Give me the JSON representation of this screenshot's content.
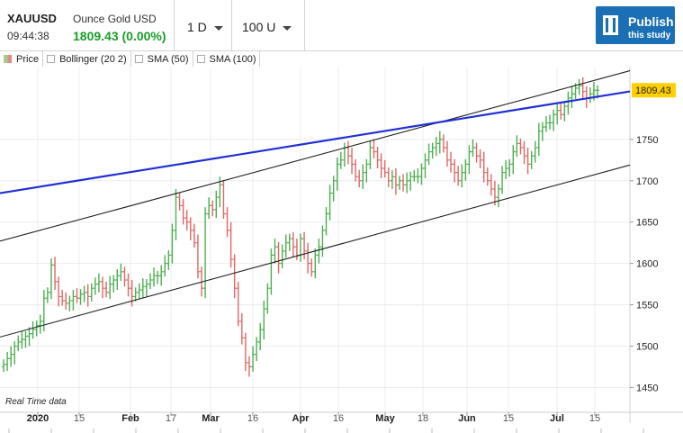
{
  "header": {
    "symbol": "XAUUSD",
    "description": "Ounce Gold USD",
    "time": "09:44:38",
    "price": "1809.43 (0.00%)",
    "period": "1 D",
    "units": "100 U",
    "publish_title": "Publish",
    "publish_sub": "this study"
  },
  "legend": [
    "Price",
    "Bollinger (20 2)",
    "SMA (50)",
    "SMA (100)"
  ],
  "footer_note": "Real Time data",
  "colors": {
    "up": "#4caf50",
    "down": "#e06666",
    "trend_blue": "#1f2fd6",
    "trend_black": "#222222",
    "price_tag": "#ffd000",
    "publish_bg": "#1a6fb5"
  },
  "chart_data": {
    "type": "candlestick",
    "ylim": [
      1420,
      1838
    ],
    "y_ticks": [
      1450,
      1500,
      1550,
      1600,
      1650,
      1700,
      1750
    ],
    "x_tick_labels": [
      "2020",
      "15",
      "Feb",
      "17",
      "Mar",
      "16",
      "Apr",
      "16",
      "May",
      "18",
      "Jun",
      "15",
      "Jul",
      "15"
    ],
    "last_price_label": "1809.43",
    "last_price": 1809.43,
    "close_series": [
      1478,
      1485,
      1490,
      1500,
      1505,
      1508,
      1512,
      1515,
      1520,
      1525,
      1530,
      1558,
      1565,
      1598,
      1578,
      1560,
      1555,
      1552,
      1555,
      1560,
      1558,
      1563,
      1565,
      1560,
      1570,
      1575,
      1578,
      1570,
      1565,
      1575,
      1580,
      1585,
      1590,
      1580,
      1570,
      1560,
      1565,
      1568,
      1572,
      1575,
      1580,
      1585,
      1585,
      1590,
      1600,
      1610,
      1640,
      1680,
      1670,
      1655,
      1650,
      1640,
      1625,
      1590,
      1570,
      1660,
      1670,
      1665,
      1680,
      1695,
      1660,
      1640,
      1605,
      1570,
      1530,
      1510,
      1480,
      1475,
      1490,
      1505,
      1520,
      1545,
      1570,
      1610,
      1620,
      1600,
      1615,
      1625,
      1630,
      1620,
      1610,
      1630,
      1615,
      1600,
      1590,
      1610,
      1620,
      1640,
      1660,
      1685,
      1700,
      1720,
      1725,
      1740,
      1730,
      1720,
      1705,
      1700,
      1710,
      1720,
      1740,
      1735,
      1725,
      1715,
      1710,
      1700,
      1705,
      1695,
      1700,
      1695,
      1700,
      1705,
      1705,
      1705,
      1715,
      1725,
      1735,
      1740,
      1745,
      1750,
      1740,
      1725,
      1720,
      1710,
      1700,
      1710,
      1720,
      1735,
      1740,
      1730,
      1725,
      1710,
      1700,
      1690,
      1680,
      1690,
      1710,
      1715,
      1720,
      1735,
      1745,
      1740,
      1730,
      1720,
      1730,
      1740,
      1760,
      1765,
      1770,
      1770,
      1780,
      1785,
      1780,
      1790,
      1800,
      1805,
      1812,
      1815,
      1808,
      1800,
      1805,
      1809.43,
      1809.43
    ],
    "trend_lines": [
      {
        "color": "black",
        "from": [
          0,
          1627
        ],
        "to": [
          700,
          1833
        ]
      },
      {
        "color": "black",
        "from": [
          0,
          1511
        ],
        "to": [
          700,
          1719
        ]
      },
      {
        "color": "blue",
        "from": [
          0,
          1685
        ],
        "to": [
          700,
          1808
        ]
      }
    ]
  }
}
